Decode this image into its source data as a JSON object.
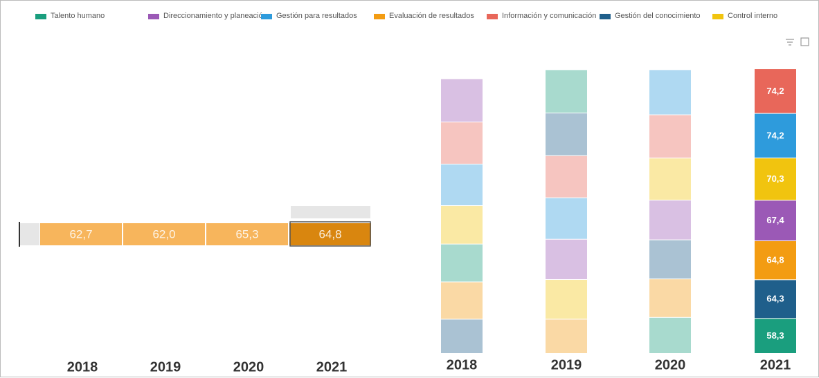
{
  "chart_data": [
    {
      "type": "strip",
      "categories": [
        "2018",
        "2019",
        "2020",
        "2021"
      ],
      "values": [
        62.7,
        62.0,
        65.3,
        64.8
      ],
      "value_labels": [
        "62,7",
        "62,0",
        "65,3",
        "64,8"
      ],
      "color": "#f7b55c",
      "highlight_color": "#d9860f"
    },
    {
      "type": "stacked-bar",
      "categories": [
        "2018",
        "2019",
        "2020",
        "2021"
      ],
      "series": [
        {
          "name": "Talento humano",
          "color": "#1a9e7e",
          "values": [
            63,
            72,
            60,
            58.3
          ],
          "value_labels": [
            null,
            null,
            null,
            "58,3"
          ]
        },
        {
          "name": "Direccionamiento y planeación",
          "color": "#9b59b6",
          "values": [
            72,
            67,
            66,
            67.4
          ],
          "value_labels": [
            null,
            null,
            null,
            "67,4"
          ]
        },
        {
          "name": "Gestión para resultados",
          "color": "#2e9bdc",
          "values": [
            69,
            69,
            75,
            74.2
          ],
          "value_labels": [
            null,
            null,
            null,
            "74,2"
          ]
        },
        {
          "name": "Evaluación de resultados",
          "color": "#f39c12",
          "values": [
            62,
            57,
            64,
            64.8
          ],
          "value_labels": [
            null,
            null,
            null,
            "64,8"
          ]
        },
        {
          "name": "Información y comunicación",
          "color": "#e8675a",
          "values": [
            70,
            70,
            72,
            74.2
          ],
          "value_labels": [
            null,
            null,
            null,
            "74,2"
          ]
        },
        {
          "name": "Gestión del conocimiento",
          "color": "#1f5f8b",
          "values": [
            57,
            71,
            65,
            64.3
          ],
          "value_labels": [
            null,
            null,
            null,
            "64,3"
          ]
        },
        {
          "name": "Control interno",
          "color": "#f1c40f",
          "values": [
            64,
            66,
            70,
            70.3
          ],
          "value_labels": [
            null,
            null,
            null,
            "70,3"
          ]
        }
      ]
    }
  ]
}
